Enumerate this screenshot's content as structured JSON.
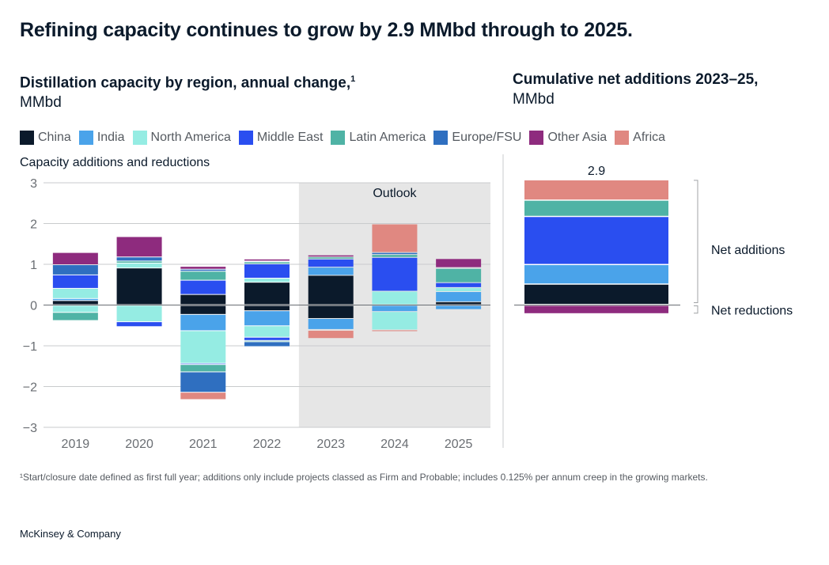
{
  "title": "Refining capacity continues to grow by 2.9 MMbd through to 2025.",
  "left_chart": {
    "title": "Distillation capacity by region, annual change,",
    "title_sup": "1",
    "unit": "MMbd",
    "sub_label": "Capacity additions and reductions",
    "outlook_label": "Outlook"
  },
  "right_chart": {
    "title": "Cumulative net additions 2023–25,",
    "unit": "MMbd",
    "total_label": "2.9",
    "net_additions_label": "Net additions",
    "net_reductions_label": "Net reductions"
  },
  "legend": [
    {
      "name": "China",
      "color": "#0b1a2b"
    },
    {
      "name": "India",
      "color": "#4aa3ea"
    },
    {
      "name": "North America",
      "color": "#95ece3"
    },
    {
      "name": "Middle East",
      "color": "#2a4ef0"
    },
    {
      "name": "Latin America",
      "color": "#4fb3a5"
    },
    {
      "name": "Europe/FSU",
      "color": "#2f6fc0"
    },
    {
      "name": "Other Asia",
      "color": "#8e2b7e"
    },
    {
      "name": "Africa",
      "color": "#e08881"
    }
  ],
  "footnote": "¹Start/closure date defined as first full year; additions only include projects classed as Firm and Probable; includes 0.125% per annum creep in the growing markets.",
  "brand": "McKinsey & Company",
  "chart_data": [
    {
      "type": "bar",
      "stacked": true,
      "title": "Distillation capacity by region, annual change,",
      "ylabel": "MMbd",
      "ylim": [
        -3,
        3
      ],
      "yticks": [
        3,
        2,
        1,
        0,
        -1,
        -2,
        -3
      ],
      "ytick_labels": [
        "3",
        "2",
        "1",
        "0",
        "−1",
        "−2",
        "−3"
      ],
      "categories": [
        "2019",
        "2020",
        "2021",
        "2022",
        "2023",
        "2024",
        "2025"
      ],
      "outlook_categories": [
        "2023",
        "2024",
        "2025"
      ],
      "grid": true,
      "series": [
        {
          "name": "China",
          "values": [
            0.1,
            0.9,
            0.25,
            0.55,
            0.72,
            0.0,
            0.07
          ]
        },
        {
          "name": "India",
          "values": [
            0.05,
            0.0,
            0.0,
            0.0,
            0.2,
            0.0,
            0.25
          ]
        },
        {
          "name": "North America",
          "values": [
            0.25,
            0.12,
            0.0,
            0.1,
            0.0,
            0.33,
            0.1
          ]
        },
        {
          "name": "Middle East",
          "values": [
            0.33,
            0.0,
            0.35,
            0.35,
            0.2,
            0.83,
            0.12
          ]
        },
        {
          "name": "Latin America",
          "values": [
            0.0,
            0.05,
            0.22,
            0.05,
            0.05,
            0.07,
            0.35
          ]
        },
        {
          "name": "Europe/FSU",
          "values": [
            0.25,
            0.1,
            0.05,
            0.02,
            0.0,
            0.05,
            0.02
          ]
        },
        {
          "name": "Other Asia",
          "values": [
            0.3,
            0.5,
            0.07,
            0.05,
            0.05,
            0.0,
            0.22
          ]
        },
        {
          "name": "Africa",
          "values": [
            0.0,
            0.0,
            0.0,
            0.0,
            0.0,
            0.7,
            0.0
          ]
        }
      ],
      "negative_series": [
        {
          "name": "China",
          "values": [
            0.0,
            0.0,
            -0.22,
            -0.13,
            -0.32,
            0.0,
            0.0
          ]
        },
        {
          "name": "India",
          "values": [
            0.0,
            0.0,
            -0.4,
            -0.37,
            -0.27,
            -0.15,
            -0.1
          ]
        },
        {
          "name": "North America",
          "values": [
            -0.17,
            -0.4,
            -0.8,
            -0.28,
            -0.02,
            -0.45,
            -0.02
          ]
        },
        {
          "name": "Middle East",
          "values": [
            0.0,
            -0.12,
            -0.03,
            -0.08,
            0.0,
            0.0,
            0.0
          ]
        },
        {
          "name": "Latin America",
          "values": [
            -0.2,
            0.0,
            -0.18,
            -0.03,
            0.0,
            0.0,
            0.0
          ]
        },
        {
          "name": "Europe/FSU",
          "values": [
            0.0,
            0.0,
            -0.5,
            -0.12,
            0.0,
            0.0,
            0.0
          ]
        },
        {
          "name": "Other Asia",
          "values": [
            0.0,
            0.0,
            0.0,
            0.0,
            0.0,
            0.0,
            0.0
          ]
        },
        {
          "name": "Africa",
          "values": [
            0.0,
            0.0,
            -0.18,
            0.0,
            -0.2,
            -0.04,
            0.0
          ]
        }
      ]
    },
    {
      "type": "bar",
      "stacked": true,
      "title": "Cumulative net additions 2023–25,",
      "ylabel": "MMbd",
      "ylim": [
        -3,
        3
      ],
      "total": 2.9,
      "series": [
        {
          "name": "China",
          "values": [
            0.5
          ]
        },
        {
          "name": "India",
          "values": [
            0.48
          ]
        },
        {
          "name": "Middle East",
          "values": [
            1.18
          ]
        },
        {
          "name": "Latin America",
          "values": [
            0.4
          ]
        },
        {
          "name": "Africa",
          "values": [
            0.5
          ]
        },
        {
          "name": "Other Asia",
          "values": [
            -0.2
          ]
        }
      ]
    }
  ]
}
